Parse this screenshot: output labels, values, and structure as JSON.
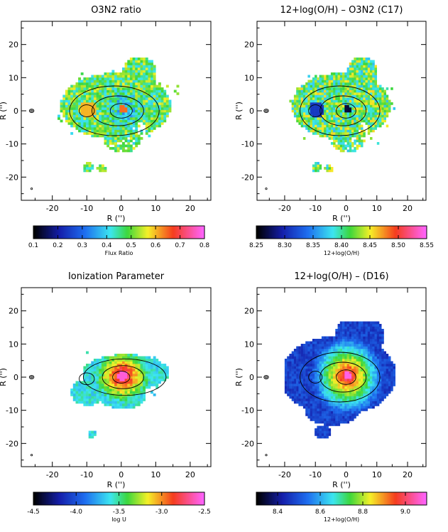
{
  "figure": {
    "panels": [
      {
        "title": "O3N2 ratio",
        "map_style": "o3n2",
        "colorbar": {
          "ticks": [
            "0.1",
            "0.2",
            "0.3",
            "0.4",
            "0.5",
            "0.6",
            "0.7",
            "0.8"
          ],
          "range": [
            0.1,
            0.8
          ],
          "label": "Flux Ratio"
        }
      },
      {
        "title": "12+log(O/H) – O3N2 (C17)",
        "map_style": "o3n2_abundance",
        "colorbar": {
          "ticks": [
            "8.25",
            "8.30",
            "8.35",
            "8.40",
            "8.45",
            "8.50",
            "8.55"
          ],
          "range": [
            8.25,
            8.55
          ],
          "label": "12+log(O/H)"
        }
      },
      {
        "title": "Ionization Parameter",
        "map_style": "logU",
        "colorbar": {
          "ticks": [
            "-4.5",
            "-4.0",
            "-3.5",
            "-3.0",
            "-2.5"
          ],
          "range": [
            -4.5,
            -2.5
          ],
          "label": "log U"
        }
      },
      {
        "title": "12+log(O/H) – (D16)",
        "map_style": "d16",
        "colorbar": {
          "ticks": [
            "8.4",
            "8.6",
            "8.8",
            "9.0"
          ],
          "range": [
            8.3,
            9.1
          ],
          "label": "12+log(O/H)"
        }
      }
    ]
  },
  "chart_data": [
    {
      "type": "heatmap",
      "title": "O3N2 ratio",
      "xlabel": "R ('')",
      "ylabel": "R ('')",
      "xlim": [
        -29,
        26
      ],
      "ylim": [
        -27,
        27
      ],
      "xticks": [
        -20,
        -10,
        0,
        10,
        20
      ],
      "yticks": [
        -20,
        -10,
        0,
        10,
        20
      ],
      "colorbar": {
        "label": "Flux Ratio",
        "range": [
          0.1,
          0.8
        ],
        "ticks": [
          0.1,
          0.2,
          0.3,
          0.4,
          0.5,
          0.6,
          0.7,
          0.8
        ]
      }
    },
    {
      "type": "heatmap",
      "title": "12+log(O/H) – O3N2 (C17)",
      "xlabel": "R ('')",
      "ylabel": "R ('')",
      "xlim": [
        -29,
        26
      ],
      "ylim": [
        -27,
        27
      ],
      "xticks": [
        -20,
        -10,
        0,
        10,
        20
      ],
      "yticks": [
        -20,
        -10,
        0,
        10,
        20
      ],
      "colorbar": {
        "label": "12+log(O/H)",
        "range": [
          8.25,
          8.55
        ],
        "ticks": [
          8.25,
          8.3,
          8.35,
          8.4,
          8.45,
          8.5,
          8.55
        ]
      }
    },
    {
      "type": "heatmap",
      "title": "Ionization Parameter",
      "xlabel": "R ('')",
      "ylabel": "R ('')",
      "xlim": [
        -29,
        26
      ],
      "ylim": [
        -27,
        27
      ],
      "xticks": [
        -20,
        -10,
        0,
        10,
        20
      ],
      "yticks": [
        -20,
        -10,
        0,
        10,
        20
      ],
      "colorbar": {
        "label": "log U",
        "range": [
          -4.5,
          -2.5
        ],
        "ticks": [
          -4.5,
          -4.0,
          -3.5,
          -3.0,
          -2.5
        ]
      }
    },
    {
      "type": "heatmap",
      "title": "12+log(O/H) – (D16)",
      "xlabel": "R ('')",
      "ylabel": "R ('')",
      "xlim": [
        -29,
        26
      ],
      "ylim": [
        -27,
        27
      ],
      "xticks": [
        -20,
        -10,
        0,
        10,
        20
      ],
      "yticks": [
        -20,
        -10,
        0,
        10,
        20
      ],
      "colorbar": {
        "label": "12+log(O/H)",
        "range": [
          8.3,
          9.1
        ],
        "ticks": [
          8.4,
          8.6,
          8.8,
          9.0
        ]
      }
    }
  ],
  "axes": {
    "xlabel": "R ('')",
    "ylabel": "R ('')"
  }
}
